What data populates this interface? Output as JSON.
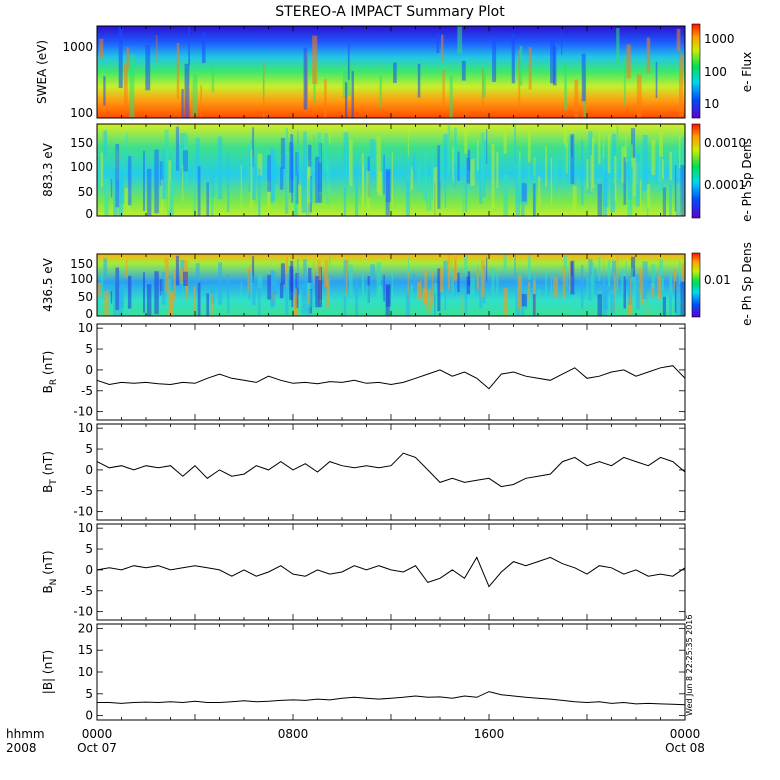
{
  "title": "STEREO-A IMPACT Summary Plot",
  "stamp": "Wed Jun  8 22:25:35 2016",
  "time_axis": {
    "row1_label": "hhmm",
    "row2_label": "2008",
    "ticks": [
      {
        "hours": 0,
        "hhmm": "0000",
        "date": "Oct 07"
      },
      {
        "hours": 8,
        "hhmm": "0800",
        "date": ""
      },
      {
        "hours": 16,
        "hhmm": "1600",
        "date": ""
      },
      {
        "hours": 24,
        "hhmm": "0000",
        "date": "Oct 08"
      }
    ]
  },
  "spectrograms": [
    {
      "id": "swea",
      "ylabel": "SWEA (eV)",
      "yticks": [
        "1000",
        "100"
      ],
      "colorbar_label": "e- Flux",
      "colorbar_ticks": [
        "1000",
        "100",
        "10"
      ]
    },
    {
      "id": "pad883",
      "ylabel": "883.3 eV",
      "yticks": [
        "150",
        "100",
        "50",
        "0"
      ],
      "colorbar_label": "e- Ph Sp Dens",
      "colorbar_ticks": [
        "0.0010",
        "0.0001"
      ]
    },
    {
      "id": "pad436",
      "ylabel": "436.5 eV",
      "yticks": [
        "150",
        "100",
        "50",
        "0"
      ],
      "colorbar_label": "e- Ph Sp Dens",
      "colorbar_ticks": [
        "0.01"
      ]
    }
  ],
  "chart_data": [
    {
      "type": "line",
      "id": "br",
      "ylabel_main": "B",
      "ylabel_sub": "R",
      "ylabel_unit": " (nT)",
      "ylim": [
        -12,
        11
      ],
      "yticks": [
        -10,
        -5,
        0,
        5,
        10
      ],
      "x": [
        0,
        0.5,
        1,
        1.5,
        2,
        2.5,
        3,
        3.5,
        4,
        4.5,
        5,
        5.5,
        6,
        6.5,
        7,
        7.5,
        8,
        8.5,
        9,
        9.5,
        10,
        10.5,
        11,
        11.5,
        12,
        12.5,
        13,
        13.5,
        14,
        14.5,
        15,
        15.5,
        16,
        16.5,
        17,
        17.5,
        18,
        18.5,
        19,
        19.5,
        20,
        20.5,
        21,
        21.5,
        22,
        22.5,
        23,
        23.5,
        24
      ],
      "y": [
        -2.5,
        -3.5,
        -3,
        -3.2,
        -3,
        -3.3,
        -3.5,
        -3,
        -3.2,
        -2,
        -1,
        -2,
        -2.5,
        -3,
        -1.5,
        -2.5,
        -3.2,
        -3,
        -3.3,
        -2.8,
        -3,
        -2.5,
        -3.2,
        -3,
        -3.5,
        -3,
        -2,
        -1,
        0,
        -1.5,
        -0.5,
        -2,
        -4.5,
        -1,
        -0.5,
        -1.5,
        -2,
        -2.5,
        -1,
        0.5,
        -2,
        -1.5,
        -0.5,
        0,
        -1.5,
        -0.5,
        0.5,
        1,
        -2
      ]
    },
    {
      "type": "line",
      "id": "bt",
      "ylabel_main": "B",
      "ylabel_sub": "T",
      "ylabel_unit": " (nT)",
      "ylim": [
        -12,
        11
      ],
      "yticks": [
        -10,
        -5,
        0,
        5,
        10
      ],
      "x": [
        0,
        0.5,
        1,
        1.5,
        2,
        2.5,
        3,
        3.5,
        4,
        4.5,
        5,
        5.5,
        6,
        6.5,
        7,
        7.5,
        8,
        8.5,
        9,
        9.5,
        10,
        10.5,
        11,
        11.5,
        12,
        12.5,
        13,
        13.5,
        14,
        14.5,
        15,
        15.5,
        16,
        16.5,
        17,
        17.5,
        18,
        18.5,
        19,
        19.5,
        20,
        20.5,
        21,
        21.5,
        22,
        22.5,
        23,
        23.5,
        24
      ],
      "y": [
        2,
        0.5,
        1,
        0,
        1,
        0.5,
        1,
        -1.5,
        1,
        -2,
        0,
        -1.5,
        -1,
        1,
        0,
        2,
        0,
        1.5,
        -0.5,
        2,
        1,
        0.5,
        1,
        0.5,
        1,
        4,
        3,
        0,
        -3,
        -2,
        -3,
        -2.5,
        -2,
        -4,
        -3.5,
        -2,
        -1.5,
        -1,
        2,
        3,
        1,
        2,
        1,
        3,
        2,
        1,
        3,
        2,
        -0.5
      ]
    },
    {
      "type": "line",
      "id": "bn",
      "ylabel_main": "B",
      "ylabel_sub": "N",
      "ylabel_unit": " (nT)",
      "ylim": [
        -12,
        11
      ],
      "yticks": [
        -10,
        -5,
        0,
        5,
        10
      ],
      "x": [
        0,
        0.5,
        1,
        1.5,
        2,
        2.5,
        3,
        3.5,
        4,
        4.5,
        5,
        5.5,
        6,
        6.5,
        7,
        7.5,
        8,
        8.5,
        9,
        9.5,
        10,
        10.5,
        11,
        11.5,
        12,
        12.5,
        13,
        13.5,
        14,
        14.5,
        15,
        15.5,
        16,
        16.5,
        17,
        17.5,
        18,
        18.5,
        19,
        19.5,
        20,
        20.5,
        21,
        21.5,
        22,
        22.5,
        23,
        23.5,
        24
      ],
      "y": [
        0,
        0.5,
        0,
        1,
        0.5,
        1,
        0,
        0.5,
        1,
        0.5,
        0,
        -1.5,
        0,
        -1.5,
        -0.5,
        1,
        -1,
        -1.5,
        0,
        -1,
        -0.5,
        1,
        0,
        1,
        0,
        -0.5,
        1,
        -3,
        -2,
        0,
        -2,
        3,
        -4,
        -0.5,
        2,
        1,
        2,
        3,
        1.5,
        0.5,
        -1,
        1,
        0.5,
        -1,
        0,
        -1.5,
        -1,
        -1.5,
        0.5
      ]
    },
    {
      "type": "line",
      "id": "bmag",
      "ylabel_main": "|B| (nT)",
      "ylabel_sub": "",
      "ylabel_unit": "",
      "ylim": [
        -1,
        21
      ],
      "yticks": [
        0,
        5,
        10,
        15,
        20
      ],
      "x": [
        0,
        0.5,
        1,
        1.5,
        2,
        2.5,
        3,
        3.5,
        4,
        4.5,
        5,
        5.5,
        6,
        6.5,
        7,
        7.5,
        8,
        8.5,
        9,
        9.5,
        10,
        10.5,
        11,
        11.5,
        12,
        12.5,
        13,
        13.5,
        14,
        14.5,
        15,
        15.5,
        16,
        16.5,
        17,
        17.5,
        18,
        18.5,
        19,
        19.5,
        20,
        20.5,
        21,
        21.5,
        22,
        22.5,
        23,
        23.5,
        24
      ],
      "y": [
        3,
        3,
        2.8,
        3,
        3.1,
        3,
        3.2,
        3,
        3.3,
        3,
        3,
        3.2,
        3.4,
        3.2,
        3.3,
        3.5,
        3.6,
        3.5,
        3.8,
        3.6,
        4,
        4.2,
        4,
        3.8,
        4,
        4.2,
        4.5,
        4.2,
        4.3,
        4,
        4.5,
        4.2,
        5.5,
        4.8,
        4.5,
        4.2,
        4,
        3.8,
        3.5,
        3.2,
        3,
        3.2,
        2.8,
        3,
        2.7,
        2.8,
        2.7,
        2.6,
        2.5
      ]
    }
  ]
}
